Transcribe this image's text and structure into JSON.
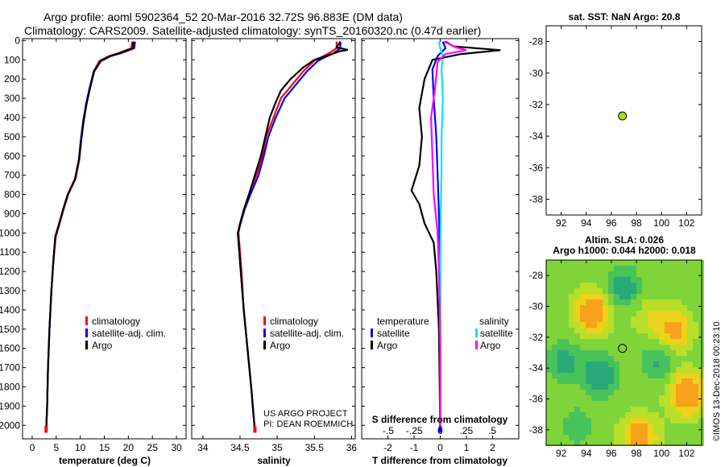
{
  "header": {
    "line1": "Argo profile: aoml 5902364_52 20-Mar-2016 32.72S 96.883E (DM data)",
    "line2": "Climatology: CARS2009. Satellite-adjusted climatology: synTS_20160320.nc (0.47d earlier)"
  },
  "colors": {
    "climatology": "#ff0000",
    "satellite": "#0000ff",
    "argo": "#000000",
    "sat_salinity": "#00e5ff",
    "argo_salinity": "#ff00ff",
    "marker": "#a8e010"
  },
  "credits": {
    "project": "US ARGO PROJECT",
    "pi": "PI: DEAN ROEMMICH"
  },
  "watermark": "©IMOS 13-Dec-2018 00:23:10",
  "chart_data": [
    {
      "type": "line",
      "name": "temperature",
      "xlabel": "temperature (deg C)",
      "ylabel": "",
      "xlim": [
        -2,
        32
      ],
      "ylim": [
        2070,
        -10
      ],
      "xticks": [
        0,
        5,
        10,
        15,
        20,
        25,
        30
      ],
      "yticks": [
        0,
        100,
        200,
        300,
        400,
        500,
        600,
        700,
        800,
        900,
        1000,
        1100,
        1200,
        1300,
        1400,
        1500,
        1600,
        1700,
        1800,
        1900,
        2000
      ],
      "legend": [
        "climatology",
        "satellite-adj. clim.",
        "Argo"
      ],
      "series": [
        {
          "name": "climatology",
          "color": "#ff0000",
          "points": [
            [
              20.8,
              5
            ],
            [
              20.6,
              40
            ],
            [
              18,
              65
            ],
            [
              16,
              80
            ],
            [
              14,
              105
            ],
            [
              12.8,
              160
            ],
            [
              12,
              250
            ],
            [
              11.3,
              330
            ],
            [
              10.7,
              420
            ],
            [
              10.2,
              520
            ],
            [
              9.8,
              620
            ],
            [
              9,
              720
            ],
            [
              7.5,
              800
            ],
            [
              6.5,
              880
            ],
            [
              5.6,
              960
            ],
            [
              4.9,
              1020
            ],
            [
              4.4,
              1150
            ],
            [
              4,
              1300
            ],
            [
              3.6,
              1500
            ],
            [
              3.3,
              1700
            ],
            [
              3.1,
              1900
            ],
            [
              2.9,
              2030
            ]
          ]
        },
        {
          "name": "satellite-adj. clim.",
          "color": "#0000ff",
          "points": [
            [
              21.4,
              5
            ],
            [
              21.2,
              40
            ],
            [
              18.5,
              65
            ],
            [
              16.2,
              82
            ],
            [
              14.2,
              108
            ],
            [
              12.8,
              160
            ],
            [
              11.9,
              250
            ],
            [
              11.2,
              330
            ],
            [
              10.6,
              420
            ],
            [
              10.1,
              520
            ],
            [
              9.7,
              620
            ],
            [
              8.9,
              720
            ],
            [
              7.4,
              800
            ],
            [
              6.4,
              880
            ],
            [
              5.5,
              960
            ],
            [
              4.8,
              1020
            ],
            [
              4.4,
              1150
            ],
            [
              4,
              1300
            ],
            [
              3.6,
              1500
            ],
            [
              3.3,
              1700
            ],
            [
              3.1,
              1900
            ],
            [
              2.9,
              2030
            ]
          ]
        },
        {
          "name": "Argo",
          "color": "#000000",
          "points": [
            [
              21,
              5
            ],
            [
              21,
              40
            ],
            [
              18.5,
              62
            ],
            [
              16.3,
              80
            ],
            [
              14.3,
              105
            ],
            [
              12.9,
              160
            ],
            [
              12,
              250
            ],
            [
              11.3,
              330
            ],
            [
              10.7,
              420
            ],
            [
              10.2,
              520
            ],
            [
              9.7,
              620
            ],
            [
              8.9,
              720
            ],
            [
              7.4,
              800
            ],
            [
              6.4,
              880
            ],
            [
              5.5,
              960
            ],
            [
              4.8,
              1020
            ],
            [
              4.4,
              1150
            ],
            [
              4,
              1300
            ],
            [
              3.6,
              1500
            ],
            [
              3.3,
              1700
            ],
            [
              3.1,
              1900
            ],
            [
              2.9,
              2030
            ]
          ]
        }
      ]
    },
    {
      "type": "line",
      "name": "salinity",
      "xlabel": "salinity",
      "ylabel": "",
      "xlim": [
        33.85,
        36.05
      ],
      "ylim": [
        2070,
        -10
      ],
      "xticks": [
        34,
        34.5,
        35,
        35.5,
        36
      ],
      "legend": [
        "climatology",
        "satellite-adj. clim.",
        "Argo"
      ],
      "series": [
        {
          "name": "climatology",
          "color": "#ff0000",
          "points": [
            [
              35.8,
              5
            ],
            [
              35.8,
              40
            ],
            [
              35.7,
              65
            ],
            [
              35.6,
              85
            ],
            [
              35.5,
              105
            ],
            [
              35.35,
              160
            ],
            [
              35.2,
              230
            ],
            [
              35.05,
              300
            ],
            [
              34.95,
              400
            ],
            [
              34.85,
              500
            ],
            [
              34.8,
              600
            ],
            [
              34.72,
              700
            ],
            [
              34.62,
              800
            ],
            [
              34.55,
              880
            ],
            [
              34.5,
              960
            ],
            [
              34.48,
              1000
            ],
            [
              34.5,
              1100
            ],
            [
              34.52,
              1200
            ],
            [
              34.55,
              1400
            ],
            [
              34.6,
              1600
            ],
            [
              34.65,
              1800
            ],
            [
              34.7,
              2030
            ]
          ]
        },
        {
          "name": "satellite-adj. clim.",
          "color": "#0000ff",
          "points": [
            [
              35.85,
              5
            ],
            [
              35.85,
              40
            ],
            [
              35.75,
              68
            ],
            [
              35.65,
              85
            ],
            [
              35.55,
              105
            ],
            [
              35.4,
              160
            ],
            [
              35.25,
              230
            ],
            [
              35.1,
              300
            ],
            [
              34.98,
              400
            ],
            [
              34.88,
              500
            ],
            [
              34.82,
              600
            ],
            [
              34.75,
              700
            ],
            [
              34.64,
              800
            ],
            [
              34.56,
              880
            ],
            [
              34.5,
              960
            ],
            [
              34.47,
              1000
            ],
            [
              34.49,
              1100
            ],
            [
              34.51,
              1200
            ],
            [
              34.55,
              1400
            ],
            [
              34.6,
              1600
            ],
            [
              34.65,
              1800
            ],
            [
              34.7,
              2030
            ]
          ]
        },
        {
          "name": "Argo",
          "color": "#000000",
          "points": [
            [
              35.85,
              5
            ],
            [
              35.8,
              35
            ],
            [
              35.95,
              48
            ],
            [
              35.85,
              55
            ],
            [
              35.7,
              75
            ],
            [
              35.5,
              100
            ],
            [
              35.35,
              140
            ],
            [
              35.18,
              200
            ],
            [
              35.05,
              260
            ],
            [
              34.98,
              320
            ],
            [
              34.9,
              400
            ],
            [
              34.84,
              500
            ],
            [
              34.78,
              600
            ],
            [
              34.7,
              700
            ],
            [
              34.62,
              800
            ],
            [
              34.55,
              880
            ],
            [
              34.5,
              950
            ],
            [
              34.47,
              1000
            ],
            [
              34.49,
              1100
            ],
            [
              34.51,
              1200
            ],
            [
              34.55,
              1400
            ],
            [
              34.6,
              1600
            ],
            [
              34.65,
              1800
            ],
            [
              34.7,
              2030
            ]
          ]
        }
      ]
    },
    {
      "type": "line",
      "name": "difference",
      "xlabel": "T difference from climatology",
      "xlabel_top": "S difference from climatology",
      "xlim": [
        -3,
        3
      ],
      "ylim": [
        2070,
        -10
      ],
      "xticks": [
        -2,
        -1,
        0,
        1,
        2
      ],
      "xticks_top": [
        -0.5,
        -0.25,
        0,
        0.25,
        0.5
      ],
      "legend_left_title": "temperature",
      "legend_right_title": "salinity",
      "legend_left": [
        "satellite",
        "Argo"
      ],
      "legend_right": [
        "satellite",
        "Argo"
      ],
      "series": [
        {
          "name": "T satellite",
          "color": "#0000ff",
          "points": [
            [
              0.1,
              5
            ],
            [
              0.2,
              40
            ],
            [
              -0.1,
              80
            ],
            [
              -0.3,
              150
            ],
            [
              -0.25,
              300
            ],
            [
              -0.15,
              500
            ],
            [
              -0.1,
              700
            ],
            [
              -0.05,
              900
            ],
            [
              0,
              1200
            ],
            [
              0,
              1600
            ],
            [
              0,
              2030
            ]
          ]
        },
        {
          "name": "S satellite",
          "color": "#00e5ff",
          "points": [
            [
              -0.05,
              5
            ],
            [
              0,
              40
            ],
            [
              0.1,
              80
            ],
            [
              0.05,
              150
            ],
            [
              0.1,
              300
            ],
            [
              0.05,
              500
            ],
            [
              0.05,
              700
            ],
            [
              0.02,
              900
            ],
            [
              0,
              1200
            ],
            [
              0,
              1600
            ],
            [
              0,
              2030
            ]
          ]
        },
        {
          "name": "T Argo",
          "color": "#000000",
          "points": [
            [
              0.2,
              5
            ],
            [
              0.5,
              30
            ],
            [
              2.3,
              50
            ],
            [
              0.8,
              70
            ],
            [
              -0.3,
              100
            ],
            [
              -0.6,
              200
            ],
            [
              -0.8,
              350
            ],
            [
              -0.7,
              500
            ],
            [
              -0.8,
              650
            ],
            [
              -1.1,
              780
            ],
            [
              -0.8,
              850
            ],
            [
              -0.6,
              950
            ],
            [
              -0.25,
              1050
            ],
            [
              -0.15,
              1200
            ],
            [
              -0.05,
              1500
            ],
            [
              0,
              2030
            ]
          ]
        },
        {
          "name": "S Argo",
          "color": "#ff00ff",
          "points": [
            [
              0.15,
              5
            ],
            [
              0.6,
              35
            ],
            [
              1,
              50
            ],
            [
              0.2,
              70
            ],
            [
              -0.1,
              110
            ],
            [
              -0.2,
              250
            ],
            [
              -0.35,
              400
            ],
            [
              -0.3,
              600
            ],
            [
              -0.25,
              800
            ],
            [
              -0.1,
              1000
            ],
            [
              -0.05,
              1200
            ],
            [
              0,
              1600
            ],
            [
              0,
              2030
            ]
          ]
        }
      ]
    },
    {
      "type": "scatter",
      "name": "sst-map",
      "title": "sat. SST: NaN Argo: 20.8",
      "xlim": [
        90.8,
        103.2
      ],
      "ylim": [
        -39,
        -27
      ],
      "xticks": [
        92,
        94,
        96,
        98,
        100,
        102
      ],
      "yticks": [
        -28,
        -30,
        -32,
        -34,
        -36,
        -38
      ],
      "points": [
        [
          96.883,
          -32.72
        ]
      ]
    },
    {
      "type": "heatmap",
      "name": "sla-map",
      "title1": "Altim. SLA: 0.026",
      "title2": "Argo h1000: 0.044 h2000: 0.018",
      "xlim": [
        90.8,
        103.2
      ],
      "ylim": [
        -39,
        -27
      ],
      "xticks": [
        92,
        94,
        96,
        98,
        100,
        102
      ],
      "yticks": [
        -28,
        -30,
        -32,
        -34,
        -36,
        -38
      ],
      "points": [
        [
          96.883,
          -32.72
        ]
      ]
    }
  ]
}
